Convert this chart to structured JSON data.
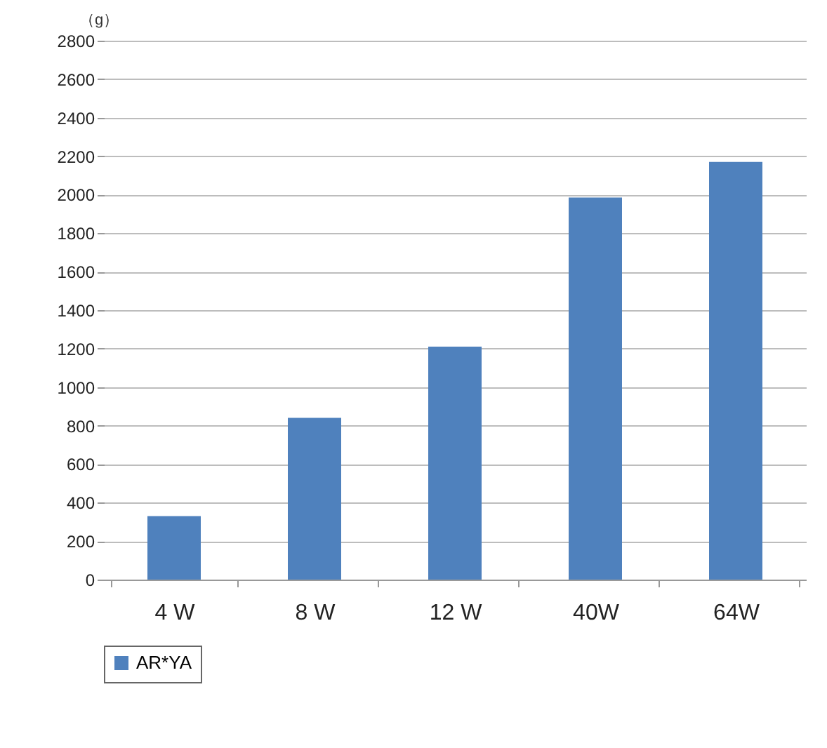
{
  "chart_data": {
    "type": "bar",
    "ylabel": "（g）",
    "categories": [
      "4 W",
      "8 W",
      "12 W",
      "40W",
      "64W"
    ],
    "series": [
      {
        "name": "AR*YA",
        "color": "#4f81bd",
        "values": [
          330,
          840,
          1210,
          1985,
          2170
        ]
      }
    ],
    "ylim": [
      0,
      2800
    ],
    "yticks": [
      0,
      200,
      400,
      600,
      800,
      1000,
      1200,
      1400,
      1600,
      1800,
      2000,
      2200,
      2400,
      2600,
      2800
    ],
    "grid": "y",
    "legend": "bottom"
  }
}
